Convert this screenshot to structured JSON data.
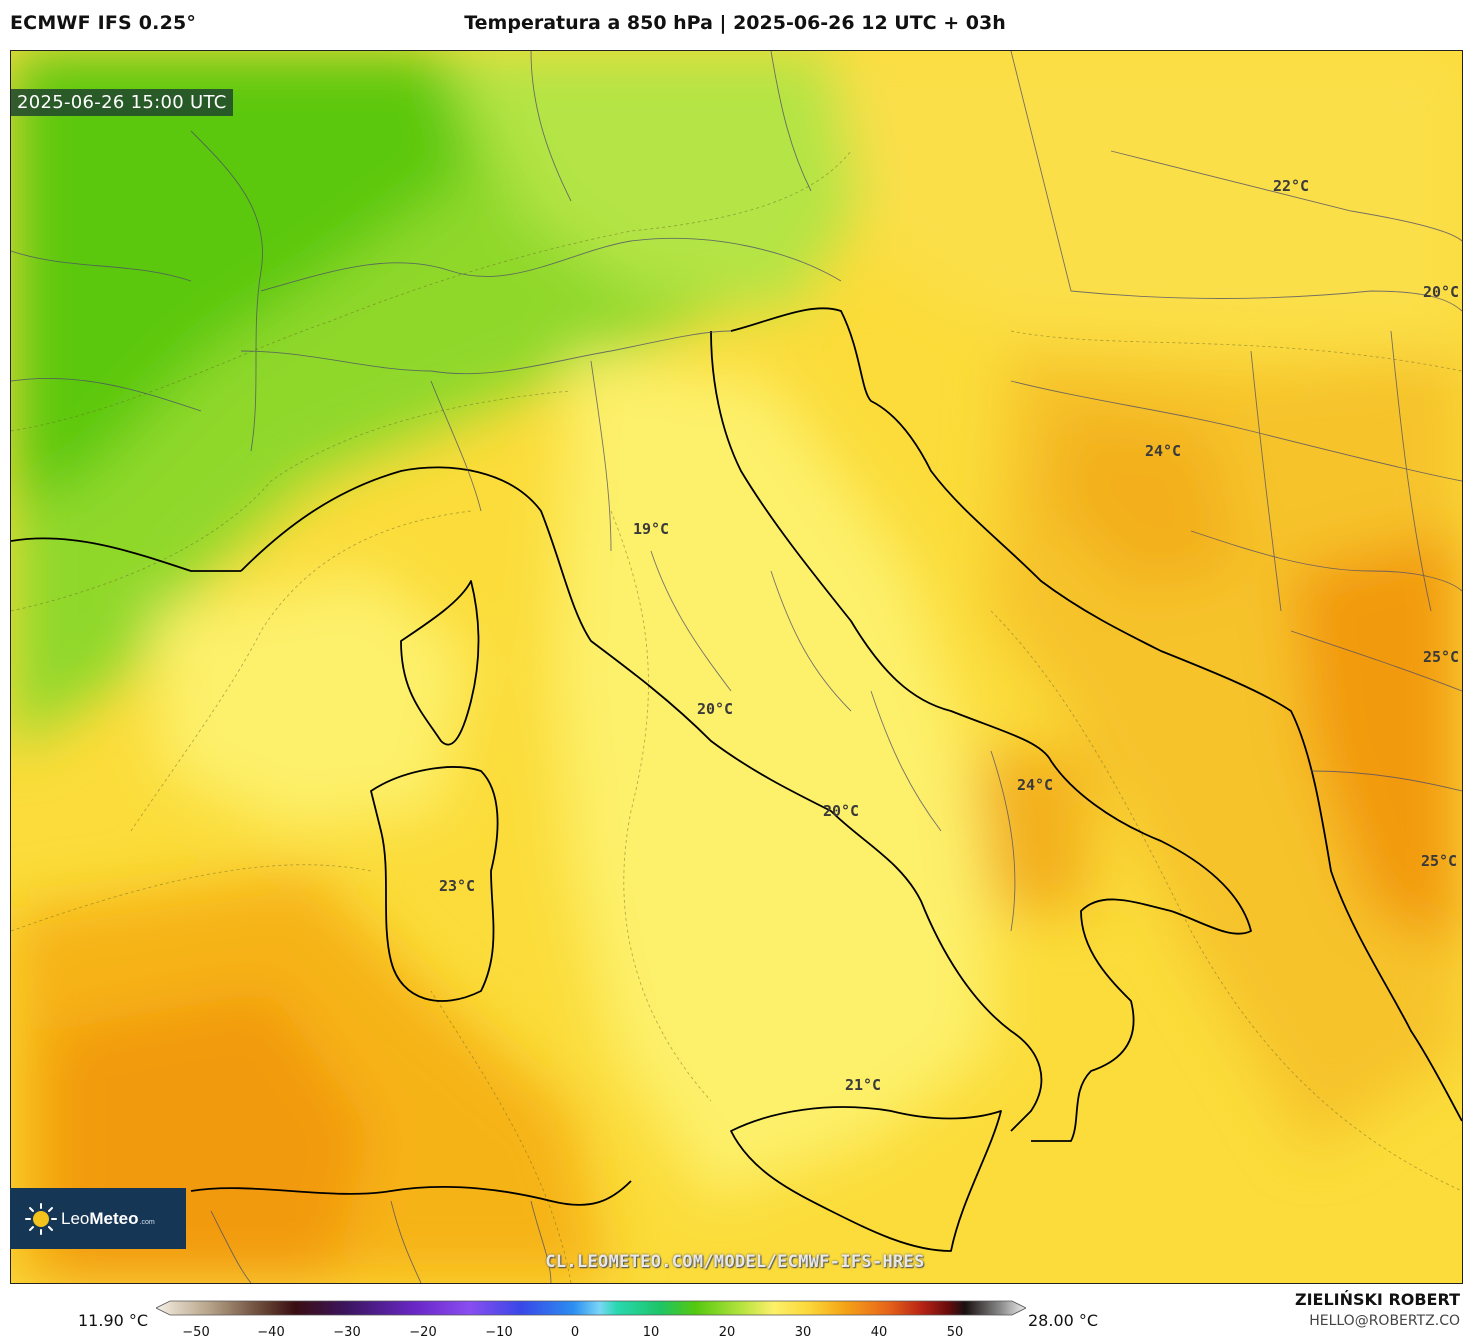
{
  "header": {
    "model": "ECMWF IFS 0.25°",
    "title": "Temperatura a 850 hPa | 2025-06-26 12 UTC + 03h"
  },
  "valid_time": "2025-06-26 15:00 UTC",
  "temperature_labels": [
    {
      "text": "22°C",
      "region": "Hungary"
    },
    {
      "text": "20°C",
      "region": "Romania-border"
    },
    {
      "text": "24°C",
      "region": "Bosnia"
    },
    {
      "text": "19°C",
      "region": "Tuscany-Umbria"
    },
    {
      "text": "20°C",
      "region": "Lazio-coast"
    },
    {
      "text": "25°C",
      "region": "Albania"
    },
    {
      "text": "24°C",
      "region": "Basilicata"
    },
    {
      "text": "20°C",
      "region": "Campania-coast"
    },
    {
      "text": "25°C",
      "region": "Greece"
    },
    {
      "text": "23°C",
      "region": "Sardinia"
    },
    {
      "text": "21°C",
      "region": "Sicily"
    }
  ],
  "logo": {
    "name_light": "Leo",
    "name_bold": "Meteo",
    "domain": ".com"
  },
  "watermark": "CL.LEOMETEO.COM/MODEL/ECMWF-IFS-HRES",
  "legend": {
    "min_value": "11.90 °C",
    "max_value": "28.00 °C",
    "ticks": [
      "−50",
      "−40",
      "−30",
      "−20",
      "−10",
      "0",
      "10",
      "20",
      "30",
      "40",
      "50"
    ]
  },
  "credits": {
    "author": "ZIELIŃSKI ROBERT",
    "contact": "HELLO@ROBERTZ.CO"
  },
  "colors": {
    "cool_green": "#5cc80e",
    "mid_green": "#a8e03c",
    "light_yellow": "#fdf06a",
    "yellow": "#fbdc3a",
    "orange": "#f6b317",
    "deep_orange": "#f29a10",
    "border_line": "#4a4a6a",
    "coast_line": "#000000"
  }
}
